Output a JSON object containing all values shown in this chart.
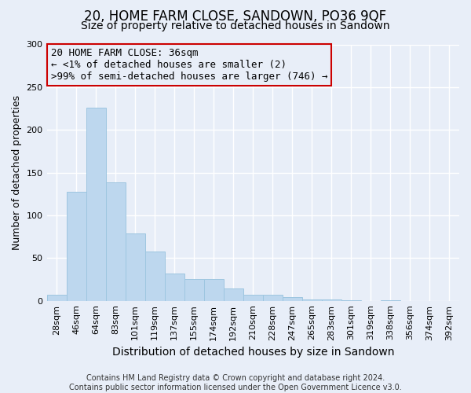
{
  "title": "20, HOME FARM CLOSE, SANDOWN, PO36 9QF",
  "subtitle": "Size of property relative to detached houses in Sandown",
  "xlabel": "Distribution of detached houses by size in Sandown",
  "ylabel": "Number of detached properties",
  "bar_labels": [
    "28sqm",
    "46sqm",
    "64sqm",
    "83sqm",
    "101sqm",
    "119sqm",
    "137sqm",
    "155sqm",
    "174sqm",
    "192sqm",
    "210sqm",
    "228sqm",
    "247sqm",
    "265sqm",
    "283sqm",
    "301sqm",
    "319sqm",
    "338sqm",
    "356sqm",
    "374sqm",
    "392sqm"
  ],
  "bar_values": [
    7,
    128,
    226,
    139,
    79,
    58,
    32,
    25,
    25,
    14,
    7,
    7,
    4,
    2,
    2,
    1,
    0,
    1,
    0,
    0,
    0
  ],
  "bar_color": "#bdd7ee",
  "bar_edgecolor": "#9ec6e0",
  "ylim": [
    0,
    300
  ],
  "yticks": [
    0,
    50,
    100,
    150,
    200,
    250,
    300
  ],
  "background_color": "#e8eef8",
  "grid_color": "#ffffff",
  "annotation_box_text_line1": "20 HOME FARM CLOSE: 36sqm",
  "annotation_box_text_line2": "← <1% of detached houses are smaller (2)",
  "annotation_box_text_line3": ">99% of semi-detached houses are larger (746) →",
  "annotation_box_edgecolor": "#cc0000",
  "footer_line1": "Contains HM Land Registry data © Crown copyright and database right 2024.",
  "footer_line2": "Contains public sector information licensed under the Open Government Licence v3.0.",
  "title_fontsize": 12,
  "subtitle_fontsize": 10,
  "xlabel_fontsize": 10,
  "ylabel_fontsize": 9,
  "tick_fontsize": 8,
  "annotation_fontsize": 9,
  "footer_fontsize": 7
}
